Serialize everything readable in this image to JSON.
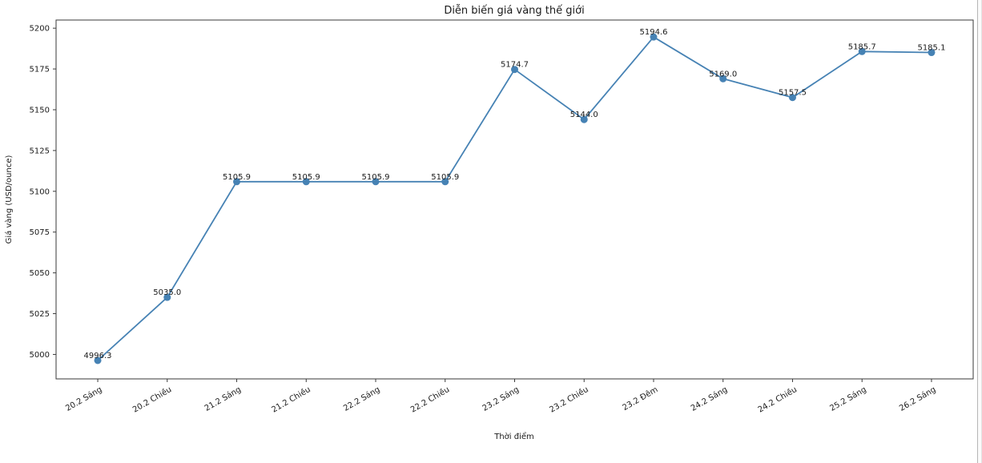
{
  "chart_data": {
    "type": "line",
    "title": "Diễn biến giá vàng thế giới",
    "xlabel": "Thời điểm",
    "ylabel": "Giá vàng (USD/ounce)",
    "categories": [
      "20.2 Sáng",
      "20.2 Chiều",
      "21.2 Sáng",
      "21.2 Chiều",
      "22.2 Sáng",
      "22.2 Chiều",
      "23.2 Sáng",
      "23.2 Chiều",
      "23.2 Đêm",
      "24.2 Sáng",
      "24.2 Chiều",
      "25.2 Sáng",
      "26.2 Sáng"
    ],
    "values": [
      4996.3,
      5035.0,
      5105.9,
      5105.9,
      5105.9,
      5105.9,
      5174.7,
      5144.0,
      5194.6,
      5169.0,
      5157.5,
      5185.7,
      5185.1
    ],
    "point_label_decimals": 1,
    "yticks": [
      5000,
      5025,
      5050,
      5075,
      5100,
      5125,
      5150,
      5175,
      5200
    ],
    "ylim": [
      4985,
      5205
    ],
    "grid": false,
    "legend": null,
    "line_color": "#4682b4",
    "marker": "circle",
    "x_tick_rotation_deg": 30
  }
}
